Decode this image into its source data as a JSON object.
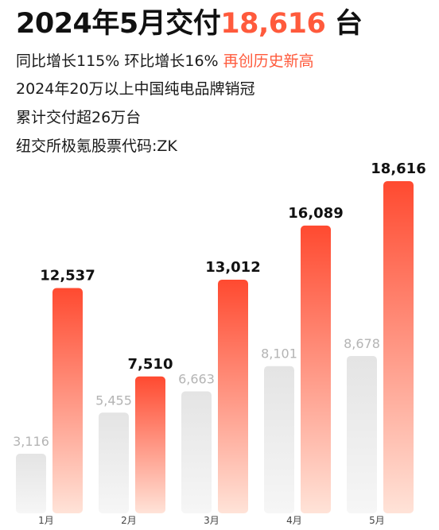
{
  "headline": {
    "prefix": "2024年5月交付",
    "number": "18,616",
    "suffix": " 台"
  },
  "lines": [
    {
      "text": "同比增长115% 环比增长16% ",
      "highlight": "再创历史新高"
    },
    {
      "text": "2024年20万以上中国纯电品牌销冠"
    },
    {
      "text": "累计交付超26万台"
    },
    {
      "text": "纽交所极氪股票代码:ZK"
    }
  ],
  "colors": {
    "accent": "#ff5a3c",
    "bar_new_top": "#ff4a30",
    "bar_new_bottom": "#ffe3d8",
    "bar_old_top": "#e4e4e4",
    "bar_old_bottom": "#f6f6f6",
    "label_new": "#111111",
    "label_old": "#b4b4b4"
  },
  "chart_data": {
    "type": "bar",
    "categories": [
      "1月",
      "2月",
      "3月",
      "4月",
      "5月"
    ],
    "series": [
      {
        "values": [
          3116,
          5455,
          6663,
          8101,
          8678
        ],
        "labels": [
          "3,116",
          "5,455",
          "6,663",
          "8,101",
          "8,678"
        ]
      },
      {
        "values": [
          12537,
          7510,
          13012,
          16089,
          18616
        ],
        "labels": [
          "12,537",
          "7,510",
          "13,012",
          "16,089",
          "18,616"
        ]
      }
    ],
    "ylim": [
      0,
      18616
    ],
    "grid": false,
    "legend": "none",
    "title": "",
    "xlabel": "",
    "ylabel": ""
  }
}
